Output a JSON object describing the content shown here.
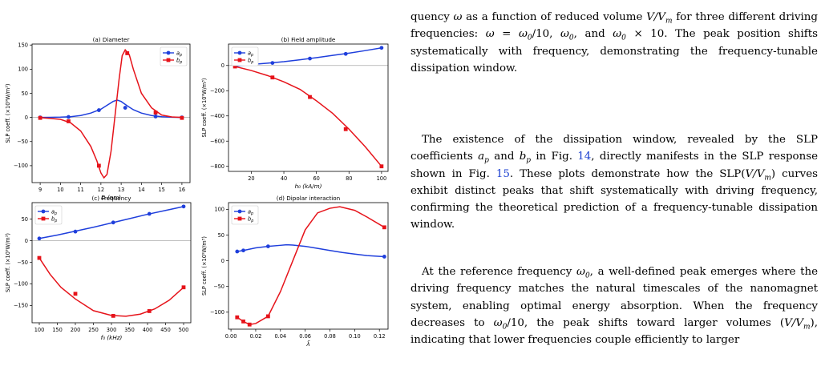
{
  "figure": {
    "panels": [
      {
        "title": "(a) Diameter",
        "xlabel": "D (nm)",
        "ylabel": "SLP coeff. (×10⁹W/m³)"
      },
      {
        "title": "(b) Field amplitude",
        "xlabel": "h₀ (kA/m)",
        "ylabel": "SLP coeff. (×10⁹W/m³)"
      },
      {
        "title": "(c) Frequency",
        "xlabel": "f₀ (kHz)",
        "ylabel": "SLP coeff. (×10⁹W/m³)"
      },
      {
        "title": "(d) Dipolar interaction",
        "xlabel": "λ̃",
        "ylabel": "SLP coeff. (×10⁹W/m³)"
      }
    ],
    "legend": [
      "a_p",
      "b_p"
    ],
    "colors": {
      "a_p": "#1f3fdc",
      "b_p": "#e6131a"
    }
  },
  "chart_data": [
    {
      "type": "line",
      "title": "(a) Diameter",
      "xlabel": "D (nm)",
      "ylabel": "SLP coeff. (×10⁹W/m³)",
      "xlim": [
        8.6,
        16.4
      ],
      "ylim": [
        -135,
        152
      ],
      "xticks": [
        9,
        10,
        11,
        12,
        13,
        14,
        15,
        16
      ],
      "yticks": [
        -100,
        -50,
        0,
        50,
        100,
        150
      ],
      "legend_loc": "top-right",
      "grid": false,
      "zero_line": true,
      "series": [
        {
          "name": "a_p",
          "curve": [
            [
              9,
              0
            ],
            [
              9.5,
              0.2
            ],
            [
              10,
              0.6
            ],
            [
              10.5,
              1.5
            ],
            [
              11,
              4
            ],
            [
              11.5,
              9
            ],
            [
              12,
              17
            ],
            [
              12.3,
              25
            ],
            [
              12.6,
              33
            ],
            [
              12.8,
              36
            ],
            [
              13,
              33
            ],
            [
              13.3,
              24
            ],
            [
              13.6,
              16
            ],
            [
              14,
              9
            ],
            [
              14.5,
              4
            ],
            [
              15,
              1.5
            ],
            [
              15.5,
              0.5
            ],
            [
              16,
              0
            ]
          ],
          "markers": [
            [
              9,
              0
            ],
            [
              10.4,
              1
            ],
            [
              11.9,
              15
            ],
            [
              13.2,
              20
            ],
            [
              14.7,
              2
            ],
            [
              16,
              0
            ]
          ]
        },
        {
          "name": "b_p",
          "curve": [
            [
              9,
              -0.5
            ],
            [
              9.5,
              -2
            ],
            [
              10,
              -4
            ],
            [
              10.5,
              -11
            ],
            [
              11,
              -28
            ],
            [
              11.5,
              -60
            ],
            [
              11.8,
              -90
            ],
            [
              12,
              -115
            ],
            [
              12.15,
              -125
            ],
            [
              12.3,
              -118
            ],
            [
              12.5,
              -70
            ],
            [
              12.7,
              5
            ],
            [
              12.9,
              80
            ],
            [
              13.05,
              128
            ],
            [
              13.2,
              140
            ],
            [
              13.4,
              130
            ],
            [
              13.6,
              100
            ],
            [
              14,
              50
            ],
            [
              14.5,
              20
            ],
            [
              15,
              5
            ],
            [
              15.5,
              1
            ],
            [
              16,
              0
            ]
          ],
          "markers": [
            [
              9,
              -1
            ],
            [
              10.4,
              -8
            ],
            [
              11.9,
              -100
            ],
            [
              13.3,
              133
            ],
            [
              14.7,
              10
            ],
            [
              16,
              -1
            ]
          ]
        }
      ]
    },
    {
      "type": "line",
      "title": "(b) Field amplitude",
      "xlabel": "h₀ (kA/m)",
      "ylabel": "SLP coeff. (×10⁹W/m³)",
      "xlim": [
        6,
        104
      ],
      "ylim": [
        -840,
        170
      ],
      "xticks": [
        20,
        40,
        60,
        80,
        100
      ],
      "yticks": [
        -800,
        -600,
        -400,
        -200,
        0
      ],
      "legend_loc": "top-left",
      "grid": false,
      "zero_line": true,
      "series": [
        {
          "name": "a_p",
          "curve": [
            [
              10,
              -5
            ],
            [
              20,
              8
            ],
            [
              30,
              18
            ],
            [
              40,
              30
            ],
            [
              50,
              45
            ],
            [
              60,
              62
            ],
            [
              70,
              80
            ],
            [
              80,
              98
            ],
            [
              90,
              118
            ],
            [
              100,
              140
            ]
          ],
          "markers": [
            [
              10,
              -5
            ],
            [
              33,
              20
            ],
            [
              56,
              55
            ],
            [
              78,
              92
            ],
            [
              100,
              140
            ]
          ]
        },
        {
          "name": "b_p",
          "curve": [
            [
              10,
              -8
            ],
            [
              20,
              -40
            ],
            [
              30,
              -80
            ],
            [
              40,
              -130
            ],
            [
              50,
              -190
            ],
            [
              60,
              -280
            ],
            [
              70,
              -380
            ],
            [
              80,
              -505
            ],
            [
              90,
              -645
            ],
            [
              100,
              -800
            ]
          ],
          "markers": [
            [
              10,
              -8
            ],
            [
              33,
              -95
            ],
            [
              56,
              -250
            ],
            [
              78,
              -505
            ],
            [
              100,
              -800
            ]
          ]
        }
      ]
    },
    {
      "type": "line",
      "title": "(c) Frequency",
      "xlabel": "f₀ (kHz)",
      "ylabel": "SLP coeff. (×10⁹W/m³)",
      "xlim": [
        80,
        520
      ],
      "ylim": [
        -190,
        88
      ],
      "xticks": [
        100,
        150,
        200,
        250,
        300,
        350,
        400,
        450,
        500
      ],
      "yticks": [
        -150,
        -100,
        -50,
        0,
        50
      ],
      "legend_loc": "top-left",
      "grid": false,
      "zero_line": true,
      "series": [
        {
          "name": "a_p",
          "curve": [
            [
              100,
              5
            ],
            [
              150,
              13
            ],
            [
              200,
              22
            ],
            [
              250,
              31
            ],
            [
              300,
              41
            ],
            [
              350,
              51
            ],
            [
              400,
              61
            ],
            [
              450,
              70
            ],
            [
              500,
              79
            ]
          ],
          "markers": [
            [
              100,
              5
            ],
            [
              200,
              21
            ],
            [
              305,
              42
            ],
            [
              405,
              62
            ],
            [
              500,
              79
            ]
          ]
        },
        {
          "name": "b_p",
          "curve": [
            [
              100,
              -40
            ],
            [
              130,
              -78
            ],
            [
              160,
              -108
            ],
            [
              200,
              -135
            ],
            [
              250,
              -162
            ],
            [
              300,
              -173
            ],
            [
              340,
              -175
            ],
            [
              380,
              -170
            ],
            [
              420,
              -158
            ],
            [
              460,
              -138
            ],
            [
              500,
              -108
            ]
          ],
          "markers": [
            [
              100,
              -40
            ],
            [
              200,
              -123
            ],
            [
              305,
              -174
            ],
            [
              405,
              -163
            ],
            [
              500,
              -108
            ]
          ]
        }
      ]
    },
    {
      "type": "line",
      "title": "(d) Dipolar interaction",
      "xlabel": "λ̃",
      "ylabel": "SLP coeff. (×10⁹W/m³)",
      "xlim": [
        -0.002,
        0.127
      ],
      "ylim": [
        -133,
        113
      ],
      "xticks": [
        0.0,
        0.02,
        0.04,
        0.06,
        0.08,
        0.1,
        0.12
      ],
      "yticks": [
        -100,
        -50,
        0,
        50,
        100
      ],
      "legend_loc": "top-left",
      "grid": false,
      "zero_line": false,
      "series": [
        {
          "name": "a_p",
          "curve": [
            [
              0.005,
              18
            ],
            [
              0.01,
              20
            ],
            [
              0.02,
              25
            ],
            [
              0.03,
              28
            ],
            [
              0.04,
              30
            ],
            [
              0.045,
              31
            ],
            [
              0.05,
              30.5
            ],
            [
              0.06,
              28
            ],
            [
              0.07,
              24
            ],
            [
              0.08,
              20
            ],
            [
              0.09,
              16
            ],
            [
              0.1,
              13
            ],
            [
              0.11,
              10
            ],
            [
              0.124,
              8
            ]
          ],
          "markers": [
            [
              0.005,
              18
            ],
            [
              0.01,
              20
            ],
            [
              0.03,
              28
            ],
            [
              0.124,
              8
            ]
          ]
        },
        {
          "name": "b_p",
          "curve": [
            [
              0.005,
              -110
            ],
            [
              0.01,
              -118
            ],
            [
              0.015,
              -124
            ],
            [
              0.02,
              -122
            ],
            [
              0.03,
              -108
            ],
            [
              0.04,
              -60
            ],
            [
              0.05,
              0
            ],
            [
              0.06,
              60
            ],
            [
              0.07,
              93
            ],
            [
              0.08,
              102
            ],
            [
              0.088,
              105
            ],
            [
              0.1,
              98
            ],
            [
              0.11,
              85
            ],
            [
              0.124,
              65
            ]
          ],
          "markers": [
            [
              0.005,
              -110
            ],
            [
              0.01,
              -118
            ],
            [
              0.015,
              -124
            ],
            [
              0.03,
              -108
            ],
            [
              0.124,
              65
            ]
          ]
        }
      ]
    }
  ],
  "text": {
    "p1": [
      "quency ",
      {
        "math": "ω"
      },
      " as a function of reduced volume ",
      {
        "math": "V/V"
      },
      {
        "sub": "m"
      },
      " for three different driving frequencies: ",
      {
        "math": "ω"
      },
      " = ",
      {
        "math": "ω"
      },
      {
        "sub": "0"
      },
      "/10, ",
      {
        "math": "ω"
      },
      {
        "sub": "0"
      },
      ", and ",
      {
        "math": "ω"
      },
      {
        "sub": "0"
      },
      " × 10. The peak position shifts systematically with frequency, demonstrating the frequency-tunable dissipation window."
    ],
    "p2": [
      "The existence of the dissipation window, revealed by the SLP coefficients ",
      {
        "math": "a"
      },
      {
        "sub": "p"
      },
      " and ",
      {
        "math": "b"
      },
      {
        "sub": "p"
      },
      " in Fig. ",
      {
        "ref": "14"
      },
      ", directly manifests in the SLP response shown in Fig. ",
      {
        "ref": "15"
      },
      ". These plots demonstrate how the SLP(",
      {
        "math": "V/V"
      },
      {
        "sub": "m"
      },
      ") curves exhibit distinct peaks that shift systematically with driving frequency, confirming the theoretical prediction of a frequency-tunable dissipation window."
    ],
    "p3": [
      "At the reference frequency ",
      {
        "math": "ω"
      },
      {
        "sub": "0"
      },
      ", a well-defined peak emerges where the driving frequency matches the natural timescales of the nanomagnet system, enabling optimal energy absorption. When the frequency decreases to ",
      {
        "math": "ω"
      },
      {
        "sub": "0"
      },
      "/10, the peak shifts toward larger volumes (",
      {
        "math": "V/V"
      },
      {
        "sub": "m"
      },
      "), indicating that lower frequencies couple efficiently to larger"
    ]
  }
}
